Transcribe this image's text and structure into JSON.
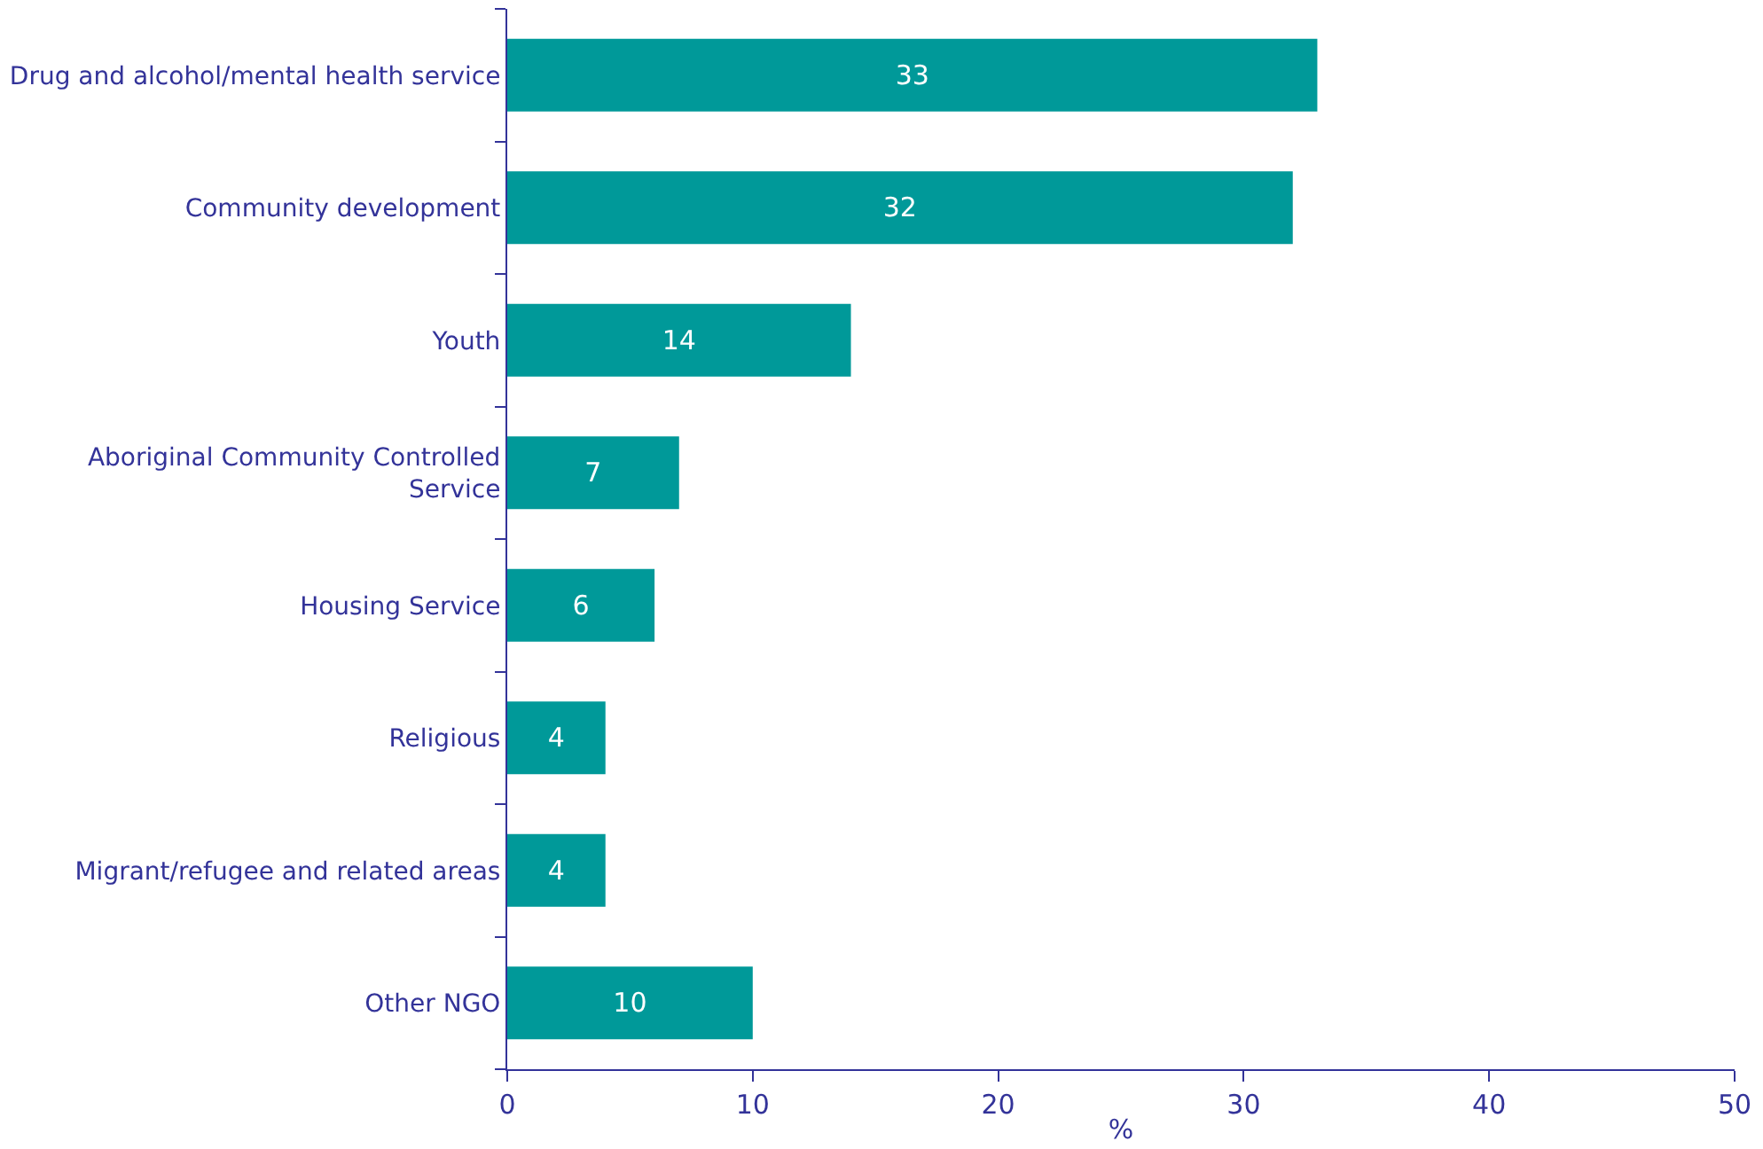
{
  "chart_data": {
    "type": "bar",
    "orientation": "horizontal",
    "categories": [
      "Drug and alcohol/mental health service",
      "Community development",
      "Youth",
      "Aboriginal Community Controlled Service",
      "Housing Service",
      "Religious",
      "Migrant/refugee and related areas",
      "Other NGO"
    ],
    "values": [
      33,
      32,
      14,
      7,
      6,
      4,
      4,
      10
    ],
    "color": "#009999",
    "data_labels": true,
    "xlabel": "%",
    "xlim": [
      0,
      50
    ],
    "xticks": [
      0,
      10,
      20,
      30,
      40,
      50
    ],
    "legend": false
  }
}
